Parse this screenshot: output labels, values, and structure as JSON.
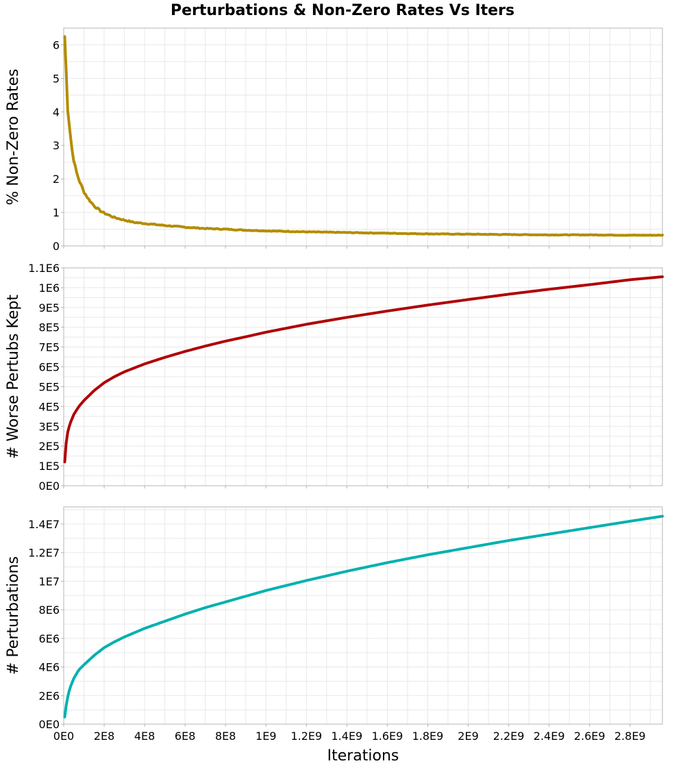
{
  "chart_data": {
    "type": "line",
    "title": "Perturbations & Non-Zero Rates Vs Iters",
    "shared_x": {
      "label": "Iterations",
      "range": [
        0,
        2960000000
      ],
      "tick_values": [
        0,
        200000000,
        400000000,
        600000000,
        800000000,
        1000000000,
        1200000000,
        1400000000,
        1600000000,
        1800000000,
        2000000000,
        2200000000,
        2400000000,
        2600000000,
        2800000000
      ],
      "tick_labels": [
        "0E0",
        "2E8",
        "4E8",
        "6E8",
        "8E8",
        "1E9",
        "1.2E9",
        "1.4E9",
        "1.6E9",
        "1.8E9",
        "2E9",
        "2.2E9",
        "2.4E9",
        "2.6E9",
        "2.8E9"
      ]
    },
    "grid": true,
    "panels": [
      {
        "ylabel": "% Non-Zero Rates",
        "ylim": [
          0,
          6.5
        ],
        "y_tick_values": [
          0,
          1,
          2,
          3,
          4,
          5,
          6
        ],
        "y_tick_labels": [
          "0",
          "1",
          "2",
          "3",
          "4",
          "5",
          "6"
        ],
        "color": "#b38c00",
        "noisy": true,
        "x": [
          5000000,
          20000000,
          40000000,
          60000000,
          80000000,
          100000000,
          120000000,
          150000000,
          180000000,
          200000000,
          250000000,
          300000000,
          350000000,
          400000000,
          500000000,
          600000000,
          700000000,
          800000000,
          900000000,
          1000000000,
          1200000000,
          1400000000,
          1600000000,
          1800000000,
          2000000000,
          2200000000,
          2400000000,
          2600000000,
          2800000000,
          2960000000
        ],
        "y": [
          6.25,
          4.1,
          2.9,
          2.25,
          1.9,
          1.62,
          1.42,
          1.2,
          1.05,
          0.98,
          0.85,
          0.77,
          0.7,
          0.67,
          0.61,
          0.56,
          0.52,
          0.5,
          0.47,
          0.45,
          0.42,
          0.4,
          0.38,
          0.36,
          0.35,
          0.34,
          0.33,
          0.33,
          0.32,
          0.32
        ]
      },
      {
        "ylabel": "# Worse Pertubs Kept",
        "ylim": [
          0,
          1100000
        ],
        "y_tick_values": [
          0,
          100000,
          200000,
          300000,
          400000,
          500000,
          600000,
          700000,
          800000,
          900000,
          1000000,
          1100000
        ],
        "y_tick_labels": [
          "0E0",
          "1E5",
          "2E5",
          "3E5",
          "4E5",
          "5E5",
          "6E5",
          "7E5",
          "8E5",
          "9E5",
          "1E6",
          "1.1E6"
        ],
        "color": "#b00000",
        "noisy": false,
        "x": [
          5000000,
          15000000,
          30000000,
          50000000,
          75000000,
          100000000,
          150000000,
          200000000,
          250000000,
          300000000,
          400000000,
          500000000,
          600000000,
          700000000,
          800000000,
          900000000,
          1000000000,
          1200000000,
          1400000000,
          1600000000,
          1800000000,
          2000000000,
          2200000000,
          2400000000,
          2600000000,
          2800000000,
          2960000000
        ],
        "y": [
          120000,
          250000,
          310000,
          360000,
          400000,
          430000,
          480000,
          520000,
          550000,
          575000,
          615000,
          648000,
          678000,
          705000,
          730000,
          752000,
          775000,
          815000,
          850000,
          882000,
          912000,
          940000,
          967000,
          992000,
          1015000,
          1040000,
          1055000
        ]
      },
      {
        "ylabel": "# Perturbations",
        "ylim": [
          0,
          15200000
        ],
        "y_tick_values": [
          0,
          2000000,
          4000000,
          6000000,
          8000000,
          10000000,
          12000000,
          14000000
        ],
        "y_tick_labels": [
          "0E0",
          "2E6",
          "4E6",
          "6E6",
          "8E6",
          "1E7",
          "1.2E7",
          "1.4E7"
        ],
        "color": "#00b0b0",
        "noisy": false,
        "x": [
          5000000,
          15000000,
          30000000,
          50000000,
          75000000,
          100000000,
          150000000,
          200000000,
          250000000,
          300000000,
          400000000,
          500000000,
          600000000,
          700000000,
          800000000,
          900000000,
          1000000000,
          1200000000,
          1400000000,
          1600000000,
          1800000000,
          2000000000,
          2200000000,
          2400000000,
          2600000000,
          2800000000,
          2960000000
        ],
        "y": [
          500000,
          1600000,
          2500000,
          3200000,
          3800000,
          4150000,
          4800000,
          5350000,
          5750000,
          6100000,
          6700000,
          7200000,
          7700000,
          8150000,
          8550000,
          8950000,
          9350000,
          10050000,
          10700000,
          11300000,
          11850000,
          12350000,
          12850000,
          13300000,
          13750000,
          14200000,
          14550000
        ]
      }
    ]
  }
}
